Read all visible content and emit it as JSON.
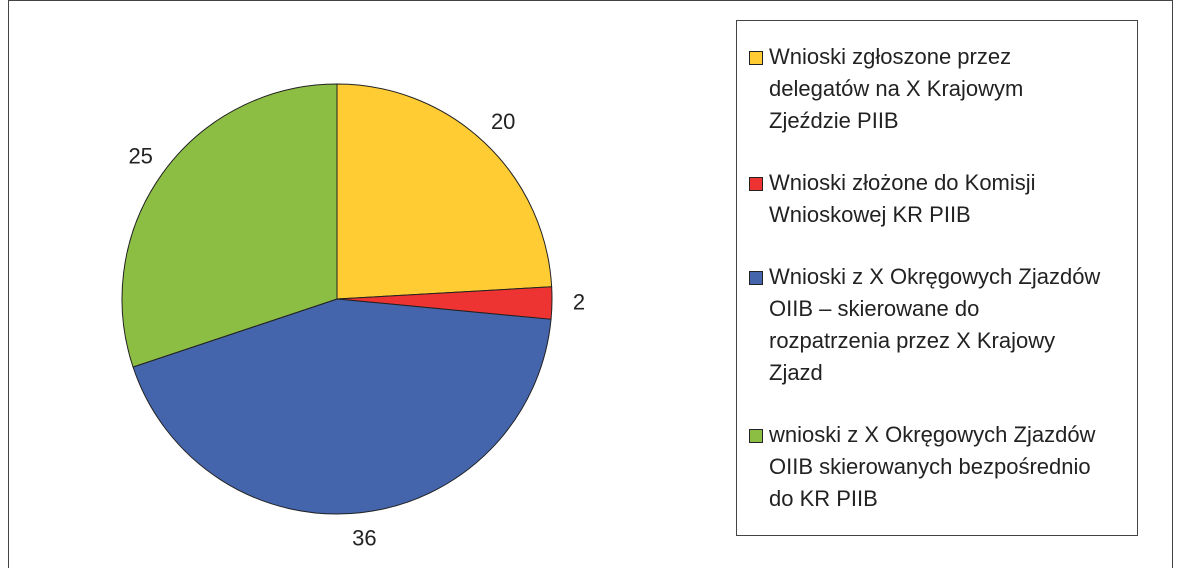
{
  "chart_data": {
    "type": "pie",
    "categories": [
      "Wnioski zgłoszone przez delegatów na X Krajowym Zjeździe PIIB",
      "Wnioski złożone do Komisji Wnioskowej KR PIIB",
      "Wnioski z X Okręgowych Zjazdów OIIB – skierowane do rozpatrzenia przez X Krajowy Zjazd",
      "wnioski z X Okręgowych Zjazdów OIIB skierowanych bezpośrednio do KR PIIB"
    ],
    "values": [
      20,
      2,
      36,
      25
    ],
    "colors": [
      "#FFCC33",
      "#EE3333",
      "#4465AC",
      "#8DBE44"
    ],
    "legend": "right"
  }
}
